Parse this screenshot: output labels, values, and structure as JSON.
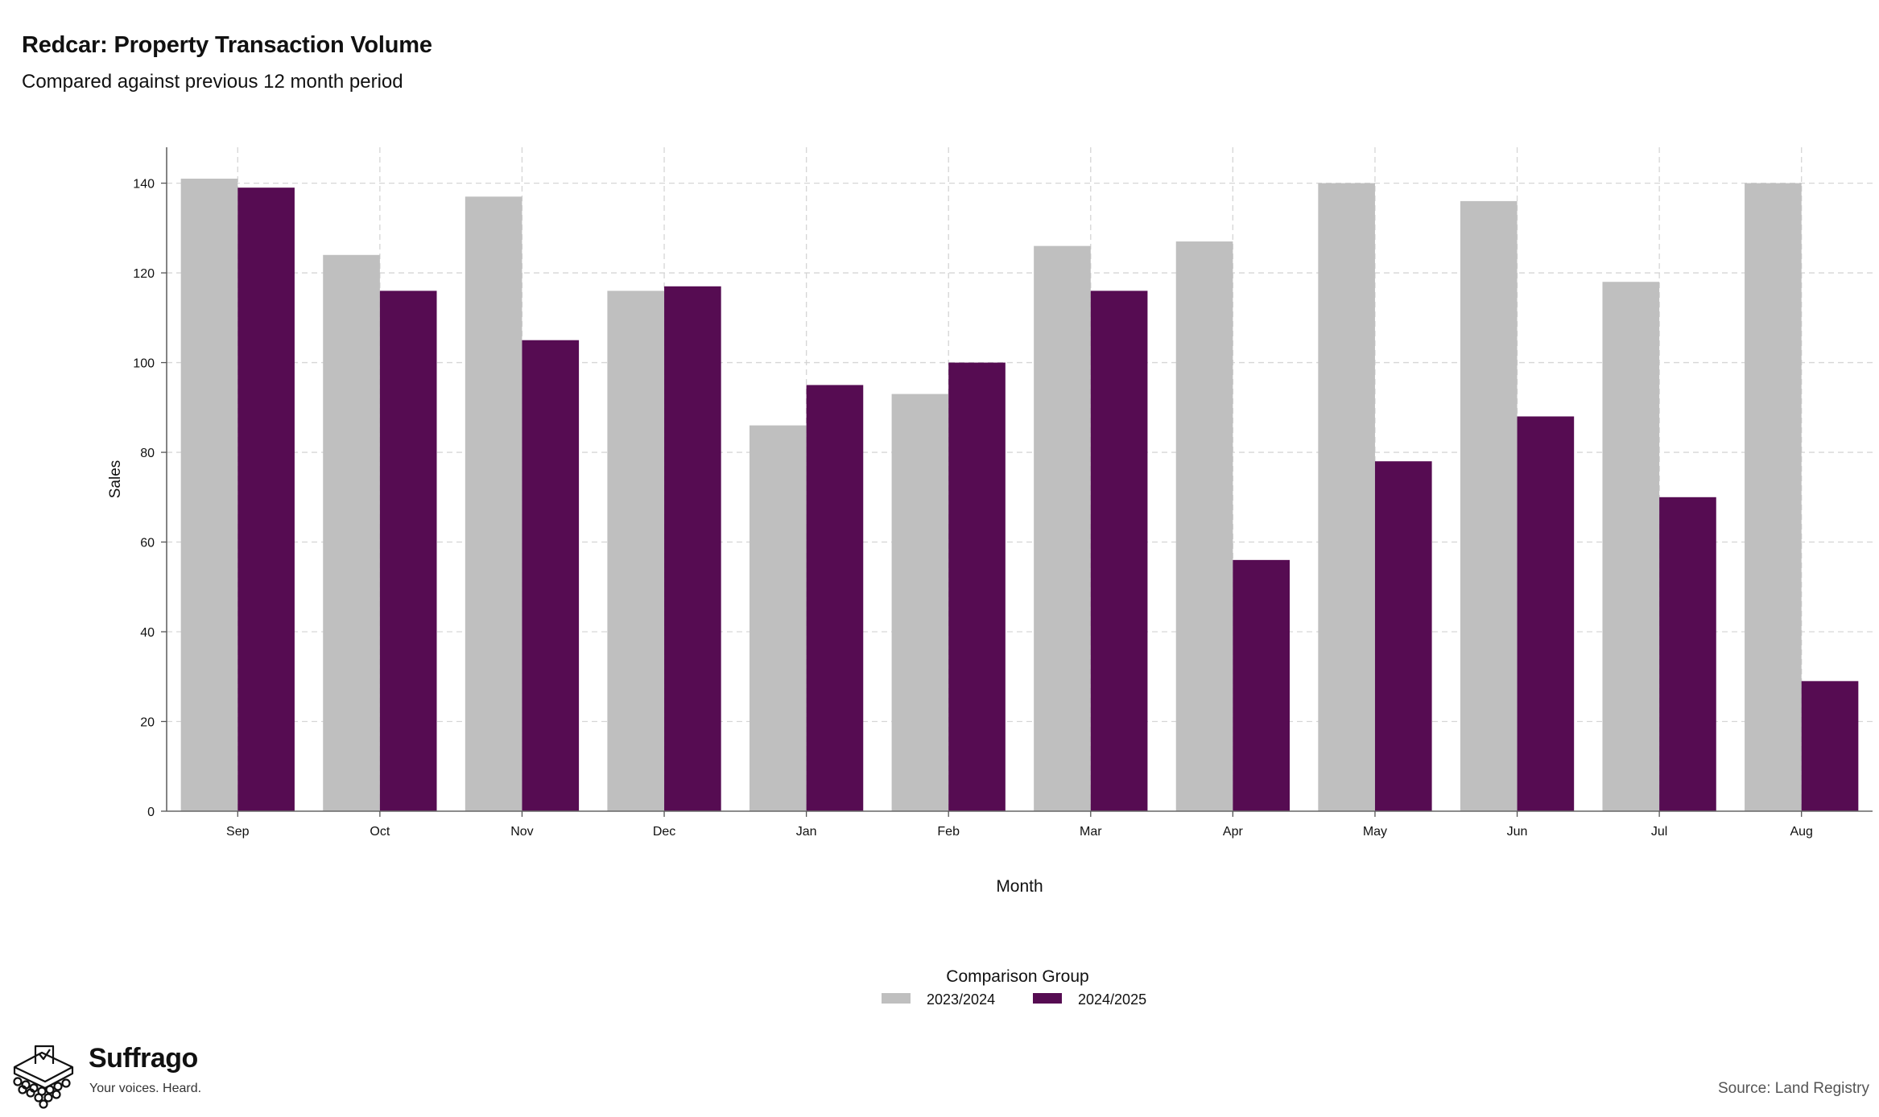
{
  "header": {
    "title": "Redcar: Property Transaction Volume",
    "subtitle": "Compared against previous 12 month period"
  },
  "chart_data": {
    "type": "bar",
    "title": "Redcar: Property Transaction Volume",
    "subtitle": "Compared against previous 12 month period",
    "xlabel": "Month",
    "ylabel": "Sales",
    "categories": [
      "Sep",
      "Oct",
      "Nov",
      "Dec",
      "Jan",
      "Feb",
      "Mar",
      "Apr",
      "May",
      "Jun",
      "Jul",
      "Aug"
    ],
    "series": [
      {
        "name": "2023/2024",
        "color": "#bfbfbf",
        "values": [
          141,
          124,
          137,
          116,
          86,
          93,
          126,
          127,
          140,
          136,
          118,
          140
        ]
      },
      {
        "name": "2024/2025",
        "color": "#560c52",
        "values": [
          139,
          116,
          105,
          117,
          95,
          100,
          116,
          56,
          78,
          88,
          70,
          29
        ]
      }
    ],
    "ylim": [
      0,
      148
    ],
    "yticks": [
      0,
      20,
      40,
      60,
      80,
      100,
      120,
      140
    ],
    "grid": true,
    "legend": {
      "title": "Comparison Group",
      "position": "bottom-center"
    }
  },
  "branding": {
    "name": "Suffrago",
    "tagline": "Your voices. Heard.",
    "logo_icon": "ballot-box-icon"
  },
  "footer": {
    "source": "Source: Land Registry"
  }
}
